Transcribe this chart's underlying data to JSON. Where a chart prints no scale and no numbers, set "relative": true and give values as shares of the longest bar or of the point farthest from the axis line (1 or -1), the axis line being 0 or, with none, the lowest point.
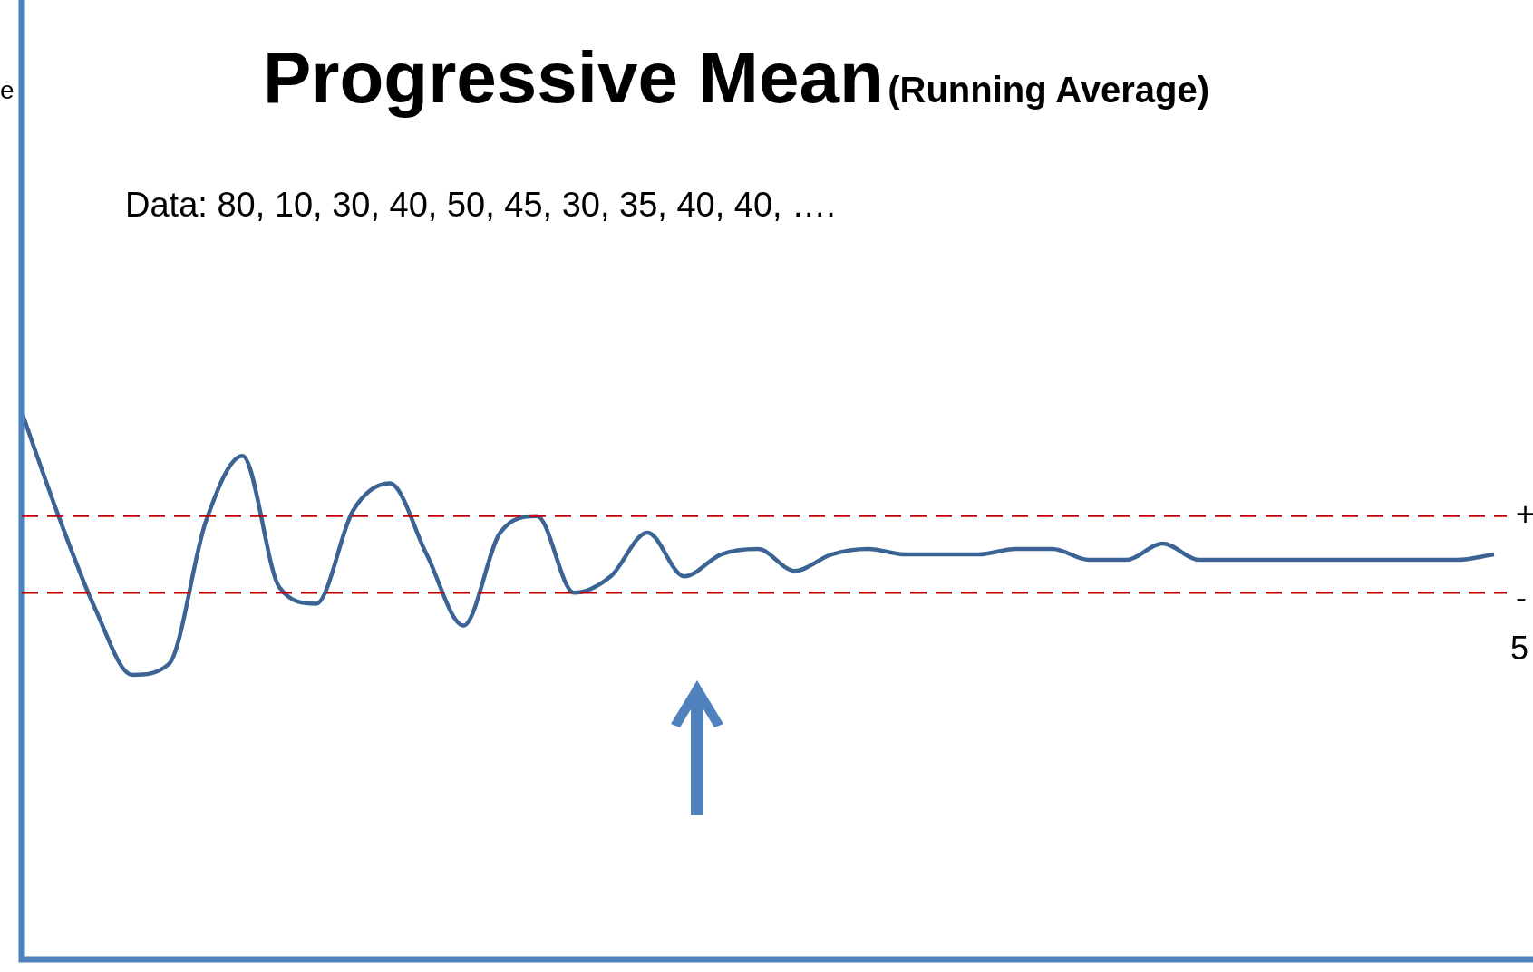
{
  "chart_data": {
    "type": "line",
    "title": "Progressive Mean",
    "subtitle": "(Running Average)",
    "annotations": [
      "Data:  80, 10, 30, 40, 50, 45, 30, 35, 40, 40, ….",
      "5",
      "e"
    ],
    "relative": true,
    "legend": false,
    "grid": false,
    "marker": "none",
    "line_style": "solid",
    "categories": [
      null,
      null,
      null,
      null,
      null,
      null,
      null,
      null,
      null,
      null,
      null,
      null,
      null,
      null,
      null,
      null,
      null,
      null,
      null,
      null,
      null,
      null,
      null,
      null,
      null,
      null,
      null,
      null,
      null,
      null,
      null,
      null,
      null,
      null,
      null,
      null,
      null,
      null,
      null,
      null,
      null
    ],
    "series": [
      {
        "color": "#3b6494",
        "values": [
          1.0,
          0.81,
          0.64,
          0.52,
          0.54,
          0.8,
          0.92,
          0.68,
          0.65,
          0.82,
          0.87,
          0.74,
          0.61,
          0.78,
          0.81,
          0.67,
          0.7,
          0.78,
          0.7,
          0.74,
          0.75,
          0.71,
          0.74,
          0.75,
          0.74,
          0.74,
          0.74,
          0.75,
          0.75,
          0.73,
          0.73,
          0.76,
          0.73,
          0.73,
          0.73,
          0.73,
          0.73,
          0.73,
          0.73,
          0.73,
          0.74
        ]
      }
    ],
    "ref_lines": [
      {
        "axis": "y",
        "value": 0.81,
        "label": "+",
        "color": "#c00000",
        "line_style": "dashed"
      },
      {
        "axis": "y",
        "value": 0.67,
        "label": "-",
        "color": "#c00000",
        "line_style": "dashed"
      }
    ]
  }
}
